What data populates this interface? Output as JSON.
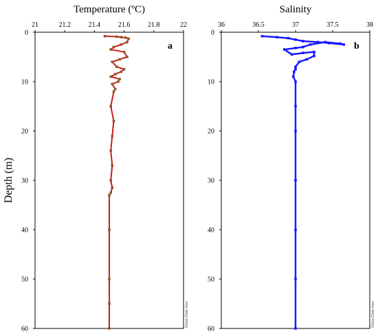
{
  "y_axis_label": "Depth (m)",
  "watermark": "Ocean Data View",
  "chart_data": [
    {
      "type": "line",
      "panel": "a",
      "title": "Temperature (ºC)",
      "xlim": [
        21,
        22
      ],
      "ylim": [
        0,
        60
      ],
      "y_inverted": true,
      "x_ticks": [
        "21",
        "21.2",
        "21.4",
        "21.6",
        "21.8",
        "22"
      ],
      "y_ticks": [
        "0",
        "10",
        "20",
        "30",
        "40",
        "50",
        "60"
      ],
      "color": "#cc1a1a",
      "marker_color": "#8b5a2b",
      "series": [
        {
          "x": [
            21.47,
            21.55,
            21.58,
            21.61,
            21.63,
            21.62,
            21.58,
            21.53,
            21.51,
            21.6,
            21.62,
            21.57,
            21.52,
            21.55,
            21.6,
            21.58,
            21.54,
            21.51,
            21.57,
            21.56,
            21.52,
            21.54,
            21.53,
            21.51,
            21.53,
            21.52,
            21.51,
            21.52,
            21.51,
            21.52,
            21.51,
            21.5,
            21.5,
            21.5,
            21.5,
            21.5
          ],
          "y": [
            0.8,
            0.9,
            1.0,
            1.1,
            1.3,
            2.0,
            2.5,
            3.0,
            3.5,
            4.0,
            5.0,
            5.5,
            6.0,
            7.0,
            7.5,
            8.0,
            8.5,
            9.0,
            9.5,
            10.0,
            10.5,
            11.5,
            12.0,
            15.0,
            18.0,
            21.0,
            24.0,
            27.0,
            30.0,
            31.5,
            32.5,
            33.0,
            40.0,
            50.0,
            55.0,
            60.0
          ]
        }
      ]
    },
    {
      "type": "line",
      "panel": "b",
      "title": "Salinity",
      "xlim": [
        36,
        38
      ],
      "ylim": [
        0,
        60
      ],
      "y_inverted": true,
      "x_ticks": [
        "36",
        "36.5",
        "37",
        "37.5",
        "38"
      ],
      "y_ticks": [
        "0",
        "10",
        "20",
        "30",
        "40",
        "50",
        "60"
      ],
      "color": "#1a1aff",
      "series": [
        {
          "x": [
            36.55,
            36.75,
            36.9,
            37.0,
            37.1,
            37.3,
            37.45,
            37.65,
            37.6,
            37.4,
            37.2,
            37.1,
            37.0,
            36.85,
            36.95,
            37.1,
            37.25,
            37.25,
            37.15,
            37.05,
            37.0,
            37.0,
            36.98,
            36.97,
            37.0,
            37.0,
            37.0,
            37.0,
            37.0,
            37.0,
            37.0
          ],
          "y": [
            0.8,
            1.0,
            1.2,
            1.5,
            1.8,
            2.0,
            2.2,
            2.5,
            2.3,
            2.0,
            2.5,
            3.0,
            3.2,
            3.5,
            4.5,
            4.2,
            4.0,
            4.8,
            5.5,
            6.0,
            7.0,
            7.5,
            8.0,
            9.0,
            10.0,
            15.0,
            20.0,
            30.0,
            40.0,
            50.0,
            60.0
          ]
        }
      ]
    }
  ]
}
